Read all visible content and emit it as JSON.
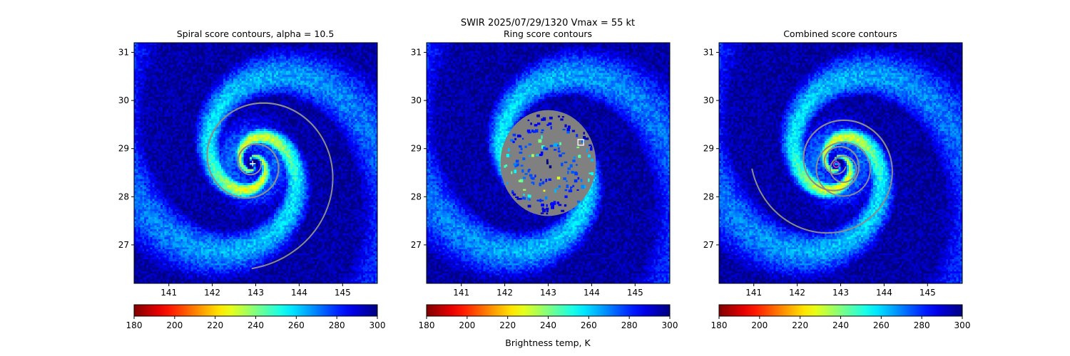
{
  "suptitle": {
    "line1": "SWIR  2025/07/29/1320    Vmax = 55 kt"
  },
  "panels": [
    {
      "key": "spiral",
      "title": "Spiral score contours, alpha = 10.5",
      "marker": "+",
      "marker_lon": 142.93,
      "marker_lat": 28.69
    },
    {
      "key": "ring",
      "title": "Ring score contours",
      "marker": "square",
      "marker_lon": 143.75,
      "marker_lat": 29.13,
      "disk_center_lon": 143.0,
      "disk_center_lat": 28.7,
      "disk_radius_deg": 1.1
    },
    {
      "key": "combined",
      "title": "Combined score contours",
      "marker": "circle",
      "marker_lon": 142.9,
      "marker_lat": 28.67
    }
  ],
  "colorbar": {
    "label": "Brightness temp, K",
    "ticks": [
      "180",
      "200",
      "220",
      "240",
      "260",
      "280",
      "300"
    ],
    "range": [
      180,
      300
    ],
    "colormap": "jet_r"
  },
  "chart_data": {
    "type": "heatmap",
    "xlabel": "",
    "ylabel": "",
    "xlim": [
      140.2,
      145.8
    ],
    "ylim": [
      26.2,
      31.2
    ],
    "xticks": [
      "141",
      "142",
      "143",
      "144",
      "145"
    ],
    "yticks": [
      "27",
      "28",
      "29",
      "30",
      "31"
    ],
    "storm_center": {
      "lon": 142.93,
      "lat": 28.69
    },
    "contour_color": "#8c8c8c",
    "marker_colors": {
      "spiral": "#ffffff",
      "ring": "#ffffff",
      "combined": "#c23fd1"
    }
  }
}
